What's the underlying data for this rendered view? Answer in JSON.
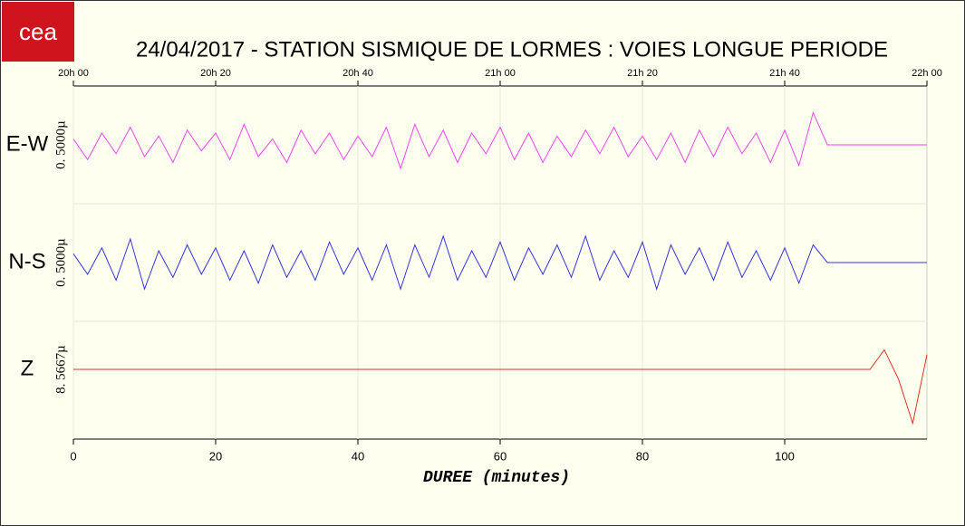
{
  "logo": "cea",
  "chart_data": {
    "type": "line",
    "title": "24/04/2017  -  STATION SISMIQUE DE LORMES : VOIES LONGUE PERIODE",
    "xlabel": "DUREE (minutes)",
    "xlim": [
      0,
      120
    ],
    "xticks": [
      0,
      20,
      40,
      60,
      80,
      100
    ],
    "top_ticks": [
      {
        "value": 0,
        "label": "20h 00"
      },
      {
        "value": 20,
        "label": "20h 20"
      },
      {
        "value": 40,
        "label": "20h 40"
      },
      {
        "value": 60,
        "label": "21h 00"
      },
      {
        "value": 80,
        "label": "21h 20"
      },
      {
        "value": 100,
        "label": "21h 40"
      },
      {
        "value": 120,
        "label": "22h 00"
      }
    ],
    "grid": true,
    "x": [
      0,
      2,
      4,
      6,
      8,
      10,
      12,
      14,
      16,
      18,
      20,
      22,
      24,
      26,
      28,
      30,
      32,
      34,
      36,
      38,
      40,
      42,
      44,
      46,
      48,
      50,
      52,
      54,
      56,
      58,
      60,
      62,
      64,
      66,
      68,
      70,
      72,
      74,
      76,
      78,
      80,
      82,
      84,
      86,
      88,
      90,
      92,
      94,
      96,
      98,
      100,
      102,
      104,
      106,
      108,
      110,
      112,
      114,
      116,
      118,
      120
    ],
    "series": [
      {
        "name": "E-W",
        "scale": "0. 5000µ",
        "color": "#ee44ee",
        "ylim": [
          -1,
          1
        ],
        "values": [
          0.1,
          -0.25,
          0.2,
          -0.15,
          0.3,
          -0.2,
          0.15,
          -0.3,
          0.25,
          -0.1,
          0.2,
          -0.25,
          0.35,
          -0.2,
          0.1,
          -0.3,
          0.25,
          -0.15,
          0.2,
          -0.25,
          0.15,
          -0.2,
          0.3,
          -0.4,
          0.35,
          -0.2,
          0.25,
          -0.3,
          0.2,
          -0.15,
          0.3,
          -0.25,
          0.2,
          -0.3,
          0.15,
          -0.2,
          0.25,
          -0.15,
          0.3,
          -0.2,
          0.15,
          -0.25,
          0.2,
          -0.3,
          0.25,
          -0.2,
          0.3,
          -0.15,
          0.2,
          -0.3,
          0.25,
          -0.35,
          0.55,
          0,
          0,
          0,
          0,
          0,
          0,
          0,
          0
        ]
      },
      {
        "name": "N-S",
        "scale": "0. 5000µ",
        "color": "#3333dd",
        "ylim": [
          -1,
          1
        ],
        "values": [
          0.15,
          -0.2,
          0.25,
          -0.3,
          0.4,
          -0.45,
          0.2,
          -0.25,
          0.3,
          -0.2,
          0.25,
          -0.3,
          0.2,
          -0.35,
          0.3,
          -0.25,
          0.2,
          -0.3,
          0.35,
          -0.2,
          0.25,
          -0.3,
          0.3,
          -0.45,
          0.3,
          -0.25,
          0.45,
          -0.3,
          0.2,
          -0.25,
          0.35,
          -0.3,
          0.25,
          -0.2,
          0.3,
          -0.25,
          0.45,
          -0.3,
          0.2,
          -0.25,
          0.35,
          -0.45,
          0.3,
          -0.2,
          0.25,
          -0.3,
          0.35,
          -0.25,
          0.2,
          -0.3,
          0.25,
          -0.35,
          0.3,
          0,
          0,
          0,
          0,
          0,
          0,
          0,
          0
        ]
      },
      {
        "name": "Z",
        "scale": "8. 5667µ",
        "color": "#e03020",
        "ylim": [
          -1.2,
          1.2
        ],
        "values": [
          0,
          0,
          0,
          0,
          0,
          0,
          0,
          0,
          0,
          0,
          0,
          0,
          0,
          0,
          0,
          0,
          0,
          0,
          0,
          0,
          0,
          0,
          0,
          0,
          0,
          0,
          0,
          0,
          0,
          0,
          0,
          0,
          0,
          0,
          0,
          0,
          0,
          0,
          0,
          0,
          0,
          0,
          0,
          0,
          0,
          0,
          0,
          0,
          0,
          0,
          0,
          0,
          0,
          0,
          0,
          0,
          0,
          0.4,
          -0.2,
          -1.1,
          0.3
        ]
      }
    ]
  }
}
